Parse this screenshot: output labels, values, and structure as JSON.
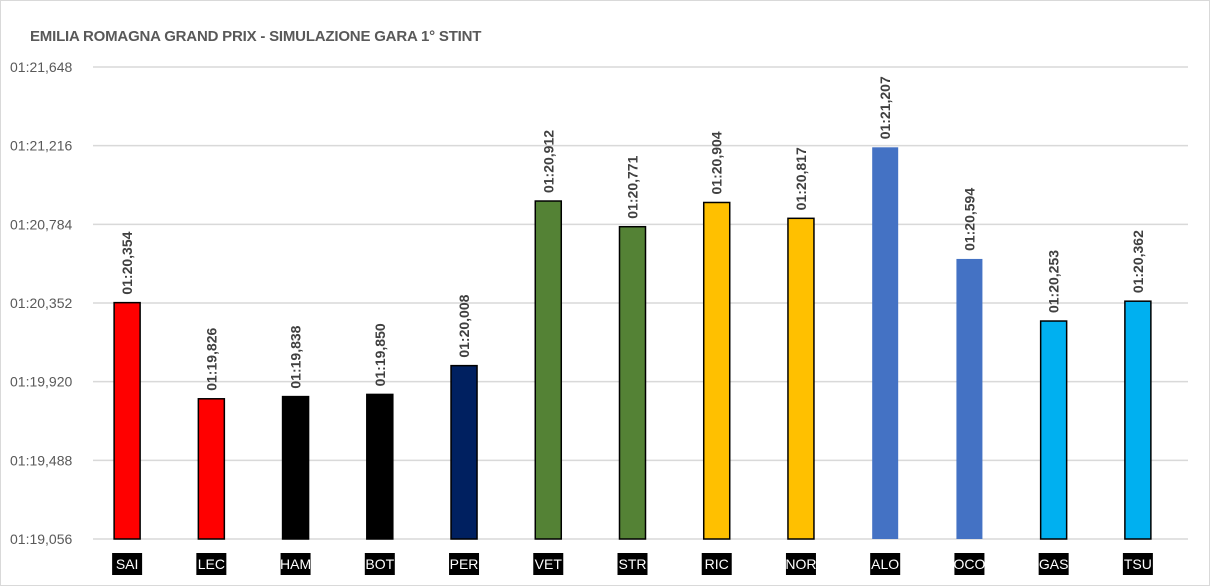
{
  "chart_data": {
    "type": "bar",
    "title": "EMILIA ROMAGNA GRAND PRIX - SIMULAZIONE GARA 1° STINT",
    "xlabel": "",
    "ylabel": "",
    "ylim": [
      "01:19,056",
      "01:21,648"
    ],
    "yticks": [
      "01:19,056",
      "01:19,488",
      "01:19,920",
      "01:20,352",
      "01:20,784",
      "01:21,216",
      "01:21,648"
    ],
    "grid": true,
    "legend": "none",
    "categories": [
      "SAI",
      "LEC",
      "HAM",
      "BOT",
      "PER",
      "VET",
      "STR",
      "RIC",
      "NOR",
      "ALO",
      "OCO",
      "GAS",
      "TSU"
    ],
    "values": [
      "01:20,354",
      "01:19,826",
      "01:19,838",
      "01:19,850",
      "01:20,008",
      "01:20,912",
      "01:20,771",
      "01:20,904",
      "01:20,817",
      "01:21,207",
      "01:20,594",
      "01:20,253",
      "01:20,362"
    ],
    "colors": [
      "#FF0000",
      "#FF0000",
      "#000000",
      "#000000",
      "#002060",
      "#548235",
      "#548235",
      "#FFC000",
      "#FFC000",
      "#4472C4",
      "#4472C4",
      "#00B0F0",
      "#00B0F0"
    ],
    "outlined": [
      true,
      true,
      true,
      true,
      true,
      true,
      true,
      true,
      true,
      false,
      false,
      true,
      true
    ]
  }
}
